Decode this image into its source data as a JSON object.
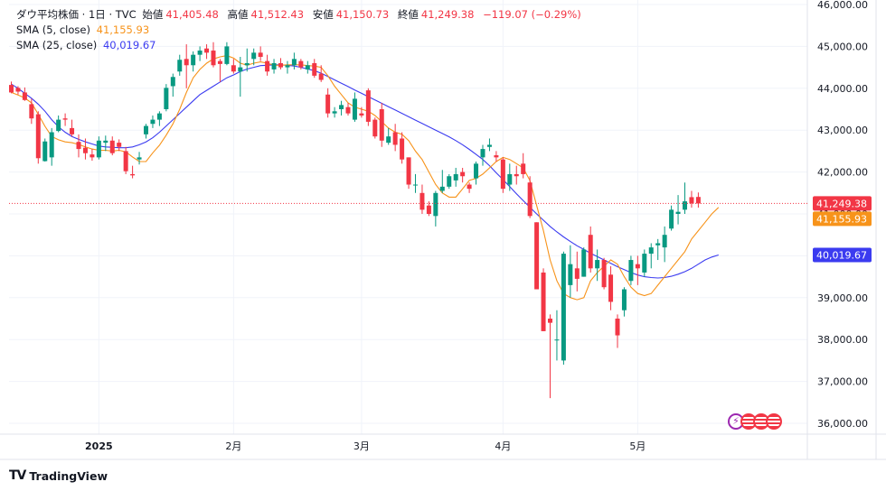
{
  "header": {
    "symbol": "ダウ平均株価 · 1日 · TVC",
    "open_label": "始値",
    "open": "41,405.48",
    "high_label": "高値",
    "high": "41,512.43",
    "low_label": "安値",
    "low": "41,150.73",
    "close_label": "終値",
    "close": "41,249.38",
    "change": "−119.07 (−0.29%)",
    "sma5_label": "SMA (5, close)",
    "sma5_value": "41,155.93",
    "sma25_label": "SMA (25, close)",
    "sma25_value": "40,019.67"
  },
  "footer": {
    "brand": "TradingView"
  },
  "colors": {
    "up": "#089981",
    "down": "#f23645",
    "sma5": "#f7931a",
    "sma25": "#3b3bf0",
    "grid": "#f0f3fa",
    "price_line": "#f23645",
    "text": "#131722"
  },
  "chart_data": {
    "type": "candlestick",
    "title": "ダウ平均株価 · 1日 · TVC",
    "y_ticks": [
      "36,000.00",
      "37,000.00",
      "38,000.00",
      "39,000.00",
      "40,000.00",
      "41,000.00",
      "42,000.00",
      "43,000.00",
      "44,000.00",
      "45,000.00",
      "46,000.00"
    ],
    "x_ticks": [
      {
        "label": "2025",
        "index": 13
      },
      {
        "label": "2月",
        "index": 33
      },
      {
        "label": "3月",
        "index": 52
      },
      {
        "label": "4月",
        "index": 73
      },
      {
        "label": "5月",
        "index": 93
      }
    ],
    "ylim": [
      35800,
      46000
    ],
    "price_labels": [
      {
        "value": 41249.38,
        "text": "41,249.38",
        "color": "#f23645"
      },
      {
        "value": 41155.93,
        "text": "41,155.93",
        "color": "#f7931a"
      },
      {
        "value": 40019.67,
        "text": "40,019.67",
        "color": "#3b3bf0"
      }
    ],
    "ohlc": [
      [
        44080,
        44160,
        43880,
        43900
      ],
      [
        44010,
        44050,
        43850,
        43920
      ],
      [
        43900,
        44020,
        43700,
        43720
      ],
      [
        43620,
        43750,
        43150,
        43280
      ],
      [
        43380,
        43450,
        42200,
        42330
      ],
      [
        42260,
        42800,
        42250,
        42730
      ],
      [
        42350,
        43050,
        42150,
        42950
      ],
      [
        42980,
        43350,
        42950,
        43250
      ],
      [
        43280,
        43400,
        43100,
        43250
      ],
      [
        43050,
        43250,
        42850,
        42900
      ],
      [
        42720,
        42900,
        42350,
        42550
      ],
      [
        42580,
        42800,
        42300,
        42450
      ],
      [
        42420,
        42550,
        42270,
        42350
      ],
      [
        42350,
        42850,
        42300,
        42750
      ],
      [
        42700,
        42870,
        42500,
        42750
      ],
      [
        42750,
        42850,
        42400,
        42450
      ],
      [
        42700,
        42780,
        42500,
        42600
      ],
      [
        42500,
        42600,
        41950,
        42020
      ],
      [
        41950,
        42150,
        41850,
        41920
      ],
      [
        42300,
        42480,
        42180,
        42350
      ],
      [
        42900,
        43150,
        42800,
        43100
      ],
      [
        43150,
        43350,
        43050,
        43250
      ],
      [
        43250,
        43450,
        43100,
        43400
      ],
      [
        43500,
        44100,
        43450,
        44010
      ],
      [
        44050,
        44350,
        43800,
        44270
      ],
      [
        44400,
        44800,
        44300,
        44680
      ],
      [
        44700,
        45050,
        44000,
        44550
      ],
      [
        44550,
        44880,
        44400,
        44800
      ],
      [
        44800,
        45000,
        44650,
        44900
      ],
      [
        44950,
        45050,
        44700,
        44850
      ],
      [
        44900,
        45100,
        44500,
        44550
      ],
      [
        44650,
        44700,
        44150,
        44580
      ],
      [
        44580,
        45100,
        44550,
        45000
      ],
      [
        44550,
        44700,
        44350,
        44400
      ],
      [
        44400,
        44750,
        43800,
        44500
      ],
      [
        44550,
        44950,
        44400,
        44600
      ],
      [
        44700,
        44950,
        44550,
        44850
      ],
      [
        44850,
        45000,
        44650,
        44750
      ],
      [
        44650,
        44800,
        44300,
        44400
      ],
      [
        44450,
        44700,
        44350,
        44600
      ],
      [
        44600,
        44720,
        44450,
        44500
      ],
      [
        44500,
        44650,
        44350,
        44550
      ],
      [
        44550,
        44850,
        44450,
        44700
      ],
      [
        44650,
        44700,
        44450,
        44500
      ],
      [
        44450,
        44650,
        44350,
        44550
      ],
      [
        44600,
        44700,
        44250,
        44300
      ],
      [
        44350,
        44550,
        44150,
        44200
      ],
      [
        43850,
        44000,
        43300,
        43400
      ],
      [
        43400,
        43550,
        43300,
        43450
      ],
      [
        43500,
        43700,
        43350,
        43600
      ],
      [
        43550,
        43650,
        43350,
        43400
      ],
      [
        43250,
        43900,
        43200,
        43750
      ],
      [
        43400,
        43550,
        43300,
        43350
      ],
      [
        43950,
        44000,
        43100,
        43200
      ],
      [
        43250,
        43300,
        42800,
        42850
      ],
      [
        43500,
        43650,
        42600,
        42750
      ],
      [
        42700,
        43050,
        42650,
        42850
      ],
      [
        42950,
        43150,
        42500,
        42650
      ],
      [
        42800,
        42950,
        42200,
        42300
      ],
      [
        42350,
        42350,
        41600,
        41700
      ],
      [
        41700,
        41950,
        41500,
        41700
      ],
      [
        41500,
        41700,
        41000,
        41100
      ],
      [
        41200,
        41300,
        40950,
        41000
      ],
      [
        40950,
        41550,
        40700,
        41500
      ],
      [
        41550,
        42050,
        41500,
        41650
      ],
      [
        41650,
        41950,
        41600,
        41900
      ],
      [
        41800,
        42100,
        41650,
        41950
      ],
      [
        42000,
        42100,
        41750,
        41900
      ],
      [
        41700,
        41750,
        41500,
        41600
      ],
      [
        41850,
        42250,
        41700,
        42200
      ],
      [
        42350,
        42650,
        42150,
        42550
      ],
      [
        42600,
        42800,
        42500,
        42650
      ],
      [
        42400,
        42500,
        42250,
        42350
      ],
      [
        42300,
        42350,
        41500,
        41600
      ],
      [
        41700,
        42200,
        41550,
        41950
      ],
      [
        41950,
        42150,
        41700,
        41900
      ],
      [
        42200,
        42450,
        41850,
        41950
      ],
      [
        41750,
        41900,
        40900,
        40950
      ],
      [
        40800,
        40800,
        39300,
        39200
      ],
      [
        39600,
        39700,
        38200,
        38200
      ],
      [
        38500,
        38600,
        36600,
        38400
      ],
      [
        38000,
        38700,
        37500,
        38000
      ],
      [
        37500,
        40100,
        37400,
        40050
      ],
      [
        39300,
        40250,
        39000,
        39800
      ],
      [
        39700,
        40100,
        39150,
        39450
      ],
      [
        39500,
        40200,
        39500,
        40150
      ],
      [
        40500,
        40700,
        39600,
        39700
      ],
      [
        39700,
        40150,
        39400,
        39900
      ],
      [
        39900,
        39950,
        39200,
        39250
      ],
      [
        39550,
        39750,
        38700,
        38900
      ],
      [
        38500,
        38600,
        37800,
        38100
      ],
      [
        38700,
        39250,
        38550,
        39200
      ],
      [
        39400,
        40000,
        39300,
        39900
      ],
      [
        39800,
        40000,
        39300,
        39700
      ],
      [
        39600,
        40150,
        39500,
        40050
      ],
      [
        40050,
        40300,
        39700,
        40200
      ],
      [
        40250,
        40400,
        39900,
        40300
      ],
      [
        40200,
        40700,
        39850,
        40500
      ],
      [
        40650,
        41200,
        40600,
        41100
      ],
      [
        41000,
        41450,
        40750,
        41050
      ],
      [
        41100,
        41750,
        41000,
        41300
      ],
      [
        41400,
        41550,
        41150,
        41250
      ],
      [
        41405,
        41512,
        41150,
        41249
      ]
    ],
    "sma5": [
      43900,
      43840,
      43770,
      43650,
      43380,
      43090,
      42850,
      42770,
      42720,
      42700,
      42660,
      42600,
      42550,
      42520,
      42520,
      42500,
      42520,
      42480,
      42360,
      42250,
      42250,
      42460,
      42640,
      42880,
      43150,
      43500,
      43900,
      44250,
      44450,
      44600,
      44700,
      44750,
      44780,
      44720,
      44600,
      44550,
      44600,
      44630,
      44600,
      44550,
      44550,
      44560,
      44560,
      44560,
      44540,
      44530,
      44500,
      44300,
      44050,
      43850,
      43650,
      43550,
      43500,
      43450,
      43350,
      43200,
      43050,
      42950,
      42900,
      42750,
      42500,
      42300,
      42000,
      41700,
      41500,
      41400,
      41400,
      41600,
      41800,
      41850,
      41950,
      42100,
      42250,
      42350,
      42300,
      42200,
      42100,
      41800,
      41200,
      40600,
      39900,
      39400,
      39100,
      39000,
      38950,
      39000,
      39400,
      39600,
      39750,
      39900,
      39800,
      39500,
      39250,
      39100,
      39050,
      39100,
      39300,
      39500,
      39700,
      39900,
      40100,
      40400,
      40600,
      40800,
      41000,
      41155.93
    ],
    "sma25": [
      44100,
      44000,
      43880,
      43760,
      43620,
      43450,
      43250,
      43080,
      42950,
      42850,
      42780,
      42720,
      42670,
      42620,
      42600,
      42590,
      42580,
      42580,
      42600,
      42650,
      42720,
      42820,
      42950,
      43100,
      43250,
      43400,
      43550,
      43700,
      43850,
      43950,
      44050,
      44150,
      44250,
      44320,
      44400,
      44460,
      44500,
      44540,
      44550,
      44560,
      44560,
      44550,
      44530,
      44500,
      44460,
      44420,
      44360,
      44280,
      44200,
      44120,
      44040,
      43960,
      43880,
      43800,
      43720,
      43640,
      43560,
      43480,
      43400,
      43320,
      43240,
      43160,
      43080,
      43000,
      42920,
      42840,
      42750,
      42650,
      42540,
      42420,
      42300,
      42150,
      41980,
      41820,
      41650,
      41480,
      41320,
      41160,
      41000,
      40850,
      40700,
      40570,
      40450,
      40340,
      40240,
      40150,
      40060,
      39980,
      39900,
      39820,
      39740,
      39670,
      39600,
      39540,
      39500,
      39480,
      39470,
      39480,
      39510,
      39560,
      39620,
      39700,
      39800,
      39900,
      39970,
      40019.67
    ]
  }
}
